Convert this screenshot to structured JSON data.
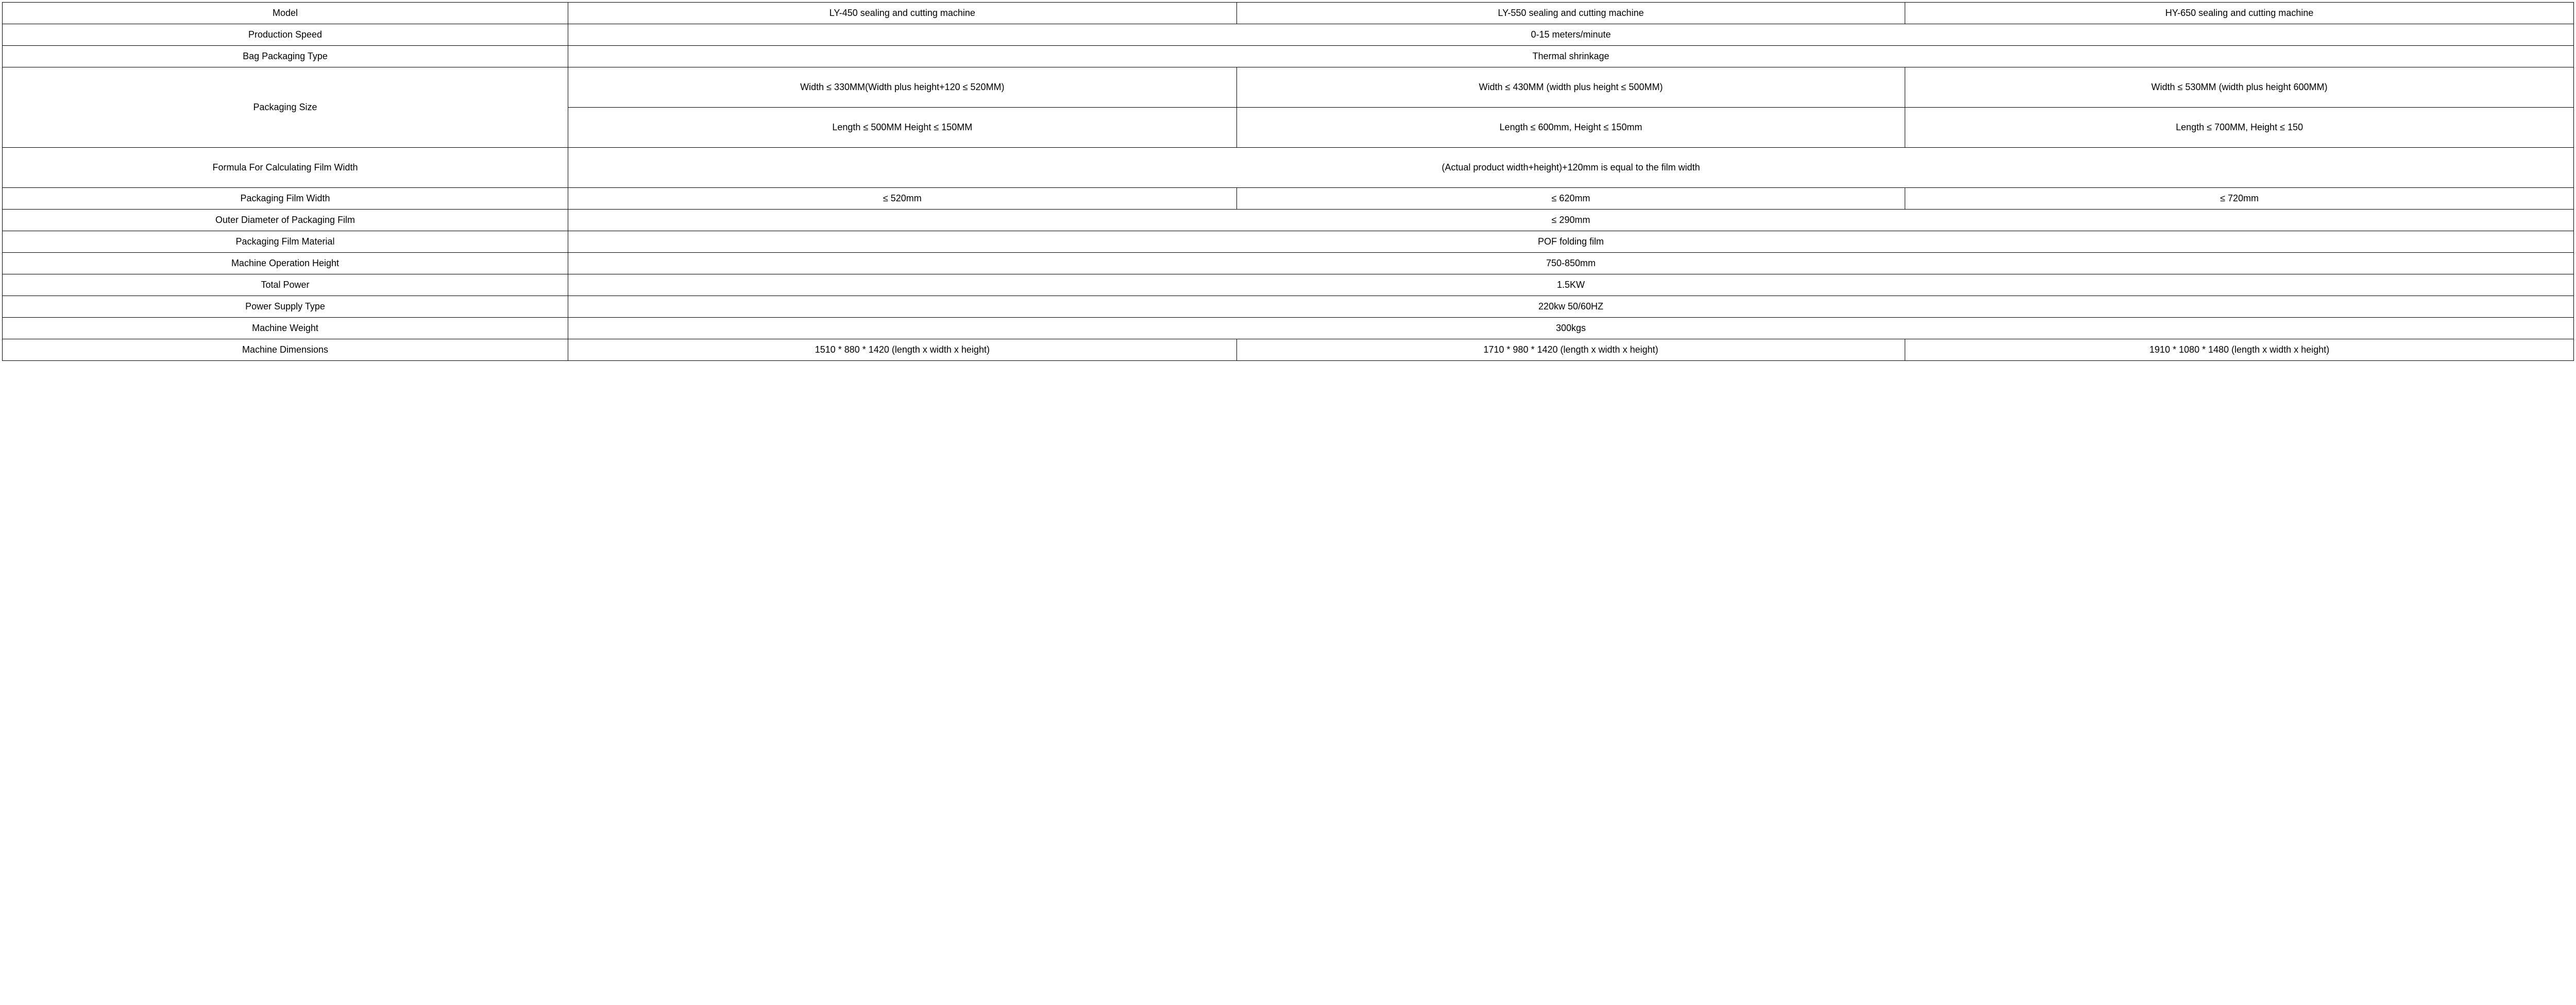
{
  "table": {
    "columns": {
      "model": "Model",
      "m1": "LY-450 sealing and cutting machine",
      "m2": "LY-550 sealing and cutting machine",
      "m3": "HY-650 sealing and cutting machine"
    },
    "rows": {
      "production_speed": {
        "label": "Production Speed",
        "value": "0-15 meters/minute"
      },
      "bag_type": {
        "label": "Bag Packaging Type",
        "value": "Thermal shrinkage"
      },
      "packaging_size": {
        "label": "Packaging Size",
        "row1": {
          "m1": "Width ≤ 330MM(Width plus height+120 ≤ 520MM)",
          "m2": "Width ≤ 430MM (width plus height ≤ 500MM)",
          "m3": "Width ≤ 530MM (width plus height 600MM)"
        },
        "row2": {
          "m1": "Length ≤ 500MM Height ≤ 150MM",
          "m2": "Length ≤ 600mm, Height ≤ 150mm",
          "m3": "Length ≤ 700MM, Height ≤ 150"
        }
      },
      "formula": {
        "label": "Formula For Calculating Film Width",
        "value": "(Actual product width+height)+120mm is equal to the film width"
      },
      "film_width": {
        "label": "Packaging Film Width",
        "m1": "≤ 520mm",
        "m2": "≤ 620mm",
        "m3": "≤ 720mm"
      },
      "outer_diameter": {
        "label": "Outer Diameter of Packaging Film",
        "value": "≤ 290mm"
      },
      "film_material": {
        "label": "Packaging Film Material",
        "value": "POF folding film"
      },
      "op_height": {
        "label": "Machine Operation Height",
        "value": "750-850mm"
      },
      "total_power": {
        "label": "Total Power",
        "value": "1.5KW"
      },
      "power_supply": {
        "label": "Power Supply Type",
        "value": "220kw 50/60HZ"
      },
      "weight": {
        "label": "Machine Weight",
        "value": "300kgs"
      },
      "dimensions": {
        "label": "Machine Dimensions",
        "m1": "1510 * 880 * 1420 (length x width x height)",
        "m2": "1710 * 980 * 1420 (length x width x height)",
        "m3": "1910 * 1080 * 1480 (length x width x height)"
      }
    }
  }
}
